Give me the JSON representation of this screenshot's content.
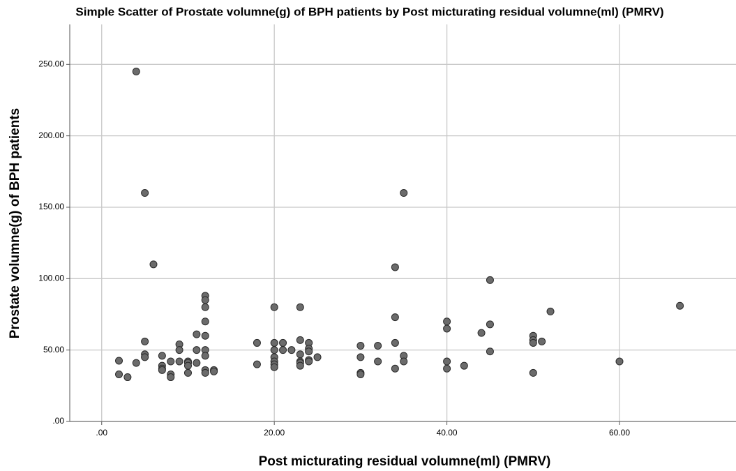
{
  "chart_data": {
    "type": "scatter",
    "title": "Simple Scatter of Prostate volumne(g) of BPH patients by Post micturating residual volumne(ml) (PMRV)",
    "x_label": "Post micturating residual volumne(ml) (PMRV)",
    "y_label": "Prostate volumne(g) of BPH patients",
    "color": "#6b6b6b",
    "grid": true,
    "xlim": [
      -3.7,
      73.5
    ],
    "ylim": [
      0,
      278
    ],
    "xticks": [
      {
        "value": 0,
        "label": ".00"
      },
      {
        "value": 20,
        "label": "20.00"
      },
      {
        "value": 40,
        "label": "40.00"
      },
      {
        "value": 60,
        "label": "60.00"
      }
    ],
    "yticks": [
      {
        "value": 0,
        "label": ".00"
      },
      {
        "value": 50,
        "label": "50.00"
      },
      {
        "value": 100,
        "label": "100.00"
      },
      {
        "value": 150,
        "label": "150.00"
      },
      {
        "value": 200,
        "label": "200.00"
      },
      {
        "value": 250,
        "label": "250.00"
      }
    ],
    "x": [
      2,
      2,
      3,
      4,
      4,
      5,
      5,
      5,
      5,
      6,
      7,
      7,
      7,
      7,
      8,
      8,
      8,
      9,
      9,
      9,
      10,
      10,
      10,
      10,
      11,
      11,
      11,
      12,
      12,
      12,
      12,
      12,
      12,
      12,
      12,
      12,
      13,
      13,
      18,
      18,
      20,
      20,
      20,
      20,
      20,
      20,
      20,
      21,
      21,
      22,
      23,
      23,
      23,
      23,
      23,
      23,
      24,
      24,
      24,
      24,
      24,
      25,
      30,
      30,
      30,
      30,
      32,
      32,
      34,
      34,
      34,
      34,
      35,
      35,
      35,
      40,
      40,
      40,
      40,
      42,
      44,
      45,
      45,
      45,
      50,
      50,
      50,
      50,
      51,
      52,
      60,
      67
    ],
    "values": [
      42.5,
      33,
      31,
      41,
      245,
      160,
      56,
      47,
      45,
      110,
      46,
      39,
      37,
      36,
      42,
      33,
      31,
      54,
      50,
      42,
      42,
      41,
      39,
      34,
      61,
      50,
      41,
      88,
      85,
      80,
      70,
      60,
      50,
      46,
      36,
      34,
      36,
      35,
      55,
      40,
      80,
      55,
      50,
      45,
      42,
      40,
      38,
      55,
      50,
      50,
      80,
      57,
      47,
      42,
      41,
      39,
      55,
      51,
      49,
      43,
      42,
      45,
      53,
      45,
      34,
      33,
      53,
      42,
      108,
      73,
      55,
      37,
      160,
      46,
      42,
      70,
      65,
      42,
      37,
      39,
      62,
      99,
      68,
      49,
      60,
      57,
      55,
      34,
      56,
      77,
      42,
      81
    ]
  }
}
